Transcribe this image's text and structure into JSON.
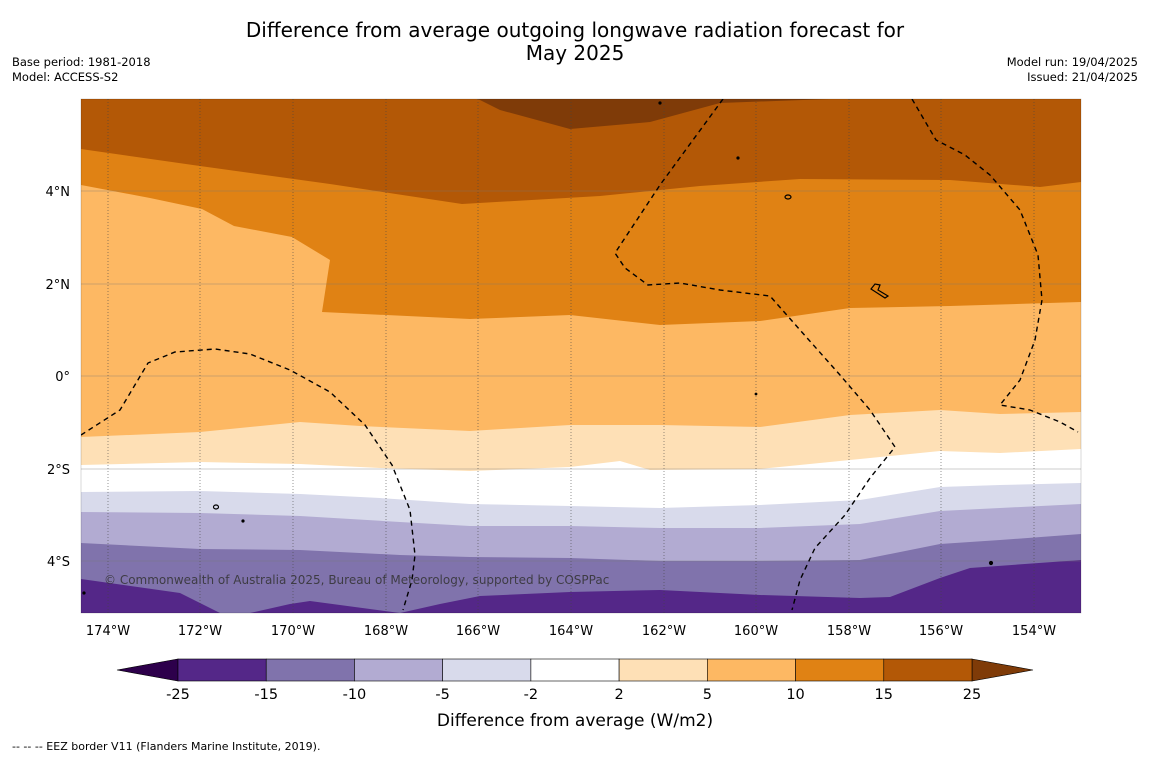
{
  "title_line1": "Difference from average outgoing longwave radiation forecast for",
  "title_line2": "May 2025",
  "base_period": "Base period: 1981-2018",
  "model": "Model: ACCESS-S2",
  "model_run": "Model run: 19/04/2025",
  "issued": "Issued: 21/04/2025",
  "copyright": "© Commonwealth of Australia 2025, Bureau of Meteorology, supported by COSPPac",
  "lat_labels": [
    "4°N",
    "2°N",
    "0°",
    "2°S",
    "4°S"
  ],
  "lon_labels": [
    "174°W",
    "172°W",
    "170°W",
    "168°W",
    "166°W",
    "164°W",
    "162°W",
    "160°W",
    "158°W",
    "156°W",
    "154°W"
  ],
  "colorbar": {
    "label": "Difference from average (W/m2)",
    "ticks": [
      "-25",
      "-15",
      "-10",
      "-5",
      "-2",
      "2",
      "5",
      "10",
      "15",
      "25"
    ],
    "colors": [
      "#542788",
      "#8073ac",
      "#b2abd2",
      "#d8daeb",
      "#ffffff",
      "#fee0b6",
      "#fdb863",
      "#e08214",
      "#b35806"
    ],
    "under_color": "#2d004b",
    "over_color": "#7f3b08"
  },
  "footnote": "--  --  -- EEZ border V11 (Flanders Marine Institute, 2019)."
}
